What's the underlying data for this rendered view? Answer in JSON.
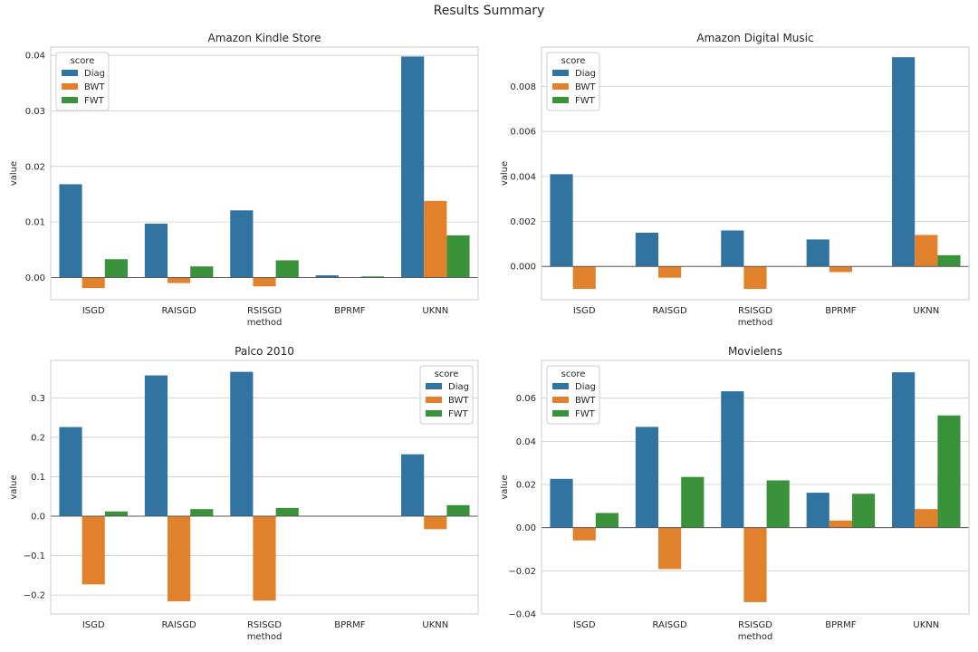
{
  "suptitle": "Results Summary",
  "colors": {
    "Diag": "#3274a1",
    "BWT": "#e1812c",
    "FWT": "#3a923a"
  },
  "chart_data": [
    {
      "type": "bar",
      "title": "Amazon Kindle Store",
      "xlabel": "method",
      "ylabel": "value",
      "categories": [
        "ISGD",
        "RAISGD",
        "RSISGD",
        "BPRMF",
        "UKNN"
      ],
      "ylim": [
        -0.004,
        0.0415
      ],
      "yticks": [
        0.0,
        0.01,
        0.02,
        0.03,
        0.04
      ],
      "ytick_labels": [
        "0.00",
        "0.01",
        "0.02",
        "0.03",
        "0.04"
      ],
      "legend_title": "score",
      "legend_position": "upper left",
      "series": [
        {
          "name": "Diag",
          "values": [
            0.0168,
            0.0097,
            0.0121,
            0.0004,
            0.0398
          ]
        },
        {
          "name": "BWT",
          "values": [
            -0.0019,
            -0.001,
            -0.0016,
            0.0,
            0.0138
          ]
        },
        {
          "name": "FWT",
          "values": [
            0.0033,
            0.002,
            0.0031,
            0.0002,
            0.0076
          ]
        }
      ],
      "grid": true
    },
    {
      "type": "bar",
      "title": "Amazon Digital Music",
      "xlabel": "method",
      "ylabel": "value",
      "categories": [
        "ISGD",
        "RAISGD",
        "RSISGD",
        "BPRMF",
        "UKNN"
      ],
      "ylim": [
        -0.00148,
        0.00975
      ],
      "yticks": [
        0.0,
        0.002,
        0.004,
        0.006,
        0.008
      ],
      "ytick_labels": [
        "0.000",
        "0.002",
        "0.004",
        "0.006",
        "0.008"
      ],
      "legend_title": "score",
      "legend_position": "upper left",
      "series": [
        {
          "name": "Diag",
          "values": [
            0.0041,
            0.0015,
            0.0016,
            0.0012,
            0.0093
          ]
        },
        {
          "name": "BWT",
          "values": [
            -0.001,
            -0.0005,
            -0.001,
            -0.00025,
            0.0014
          ]
        },
        {
          "name": "FWT",
          "values": [
            0.0,
            0.0,
            0.0,
            0.0,
            0.0005
          ]
        }
      ],
      "grid": true
    },
    {
      "type": "bar",
      "title": "Palco 2010",
      "xlabel": "method",
      "ylabel": "value",
      "categories": [
        "ISGD",
        "RAISGD",
        "RSISGD",
        "BPRMF",
        "UKNN"
      ],
      "ylim": [
        -0.248,
        0.395
      ],
      "yticks": [
        -0.2,
        -0.1,
        0.0,
        0.1,
        0.2,
        0.3
      ],
      "ytick_labels": [
        "−0.2",
        "−0.1",
        "0.0",
        "0.1",
        "0.2",
        "0.3"
      ],
      "legend_title": "score",
      "legend_position": "upper right",
      "series": [
        {
          "name": "Diag",
          "values": [
            0.226,
            0.357,
            0.366,
            0.0,
            0.157
          ]
        },
        {
          "name": "BWT",
          "values": [
            -0.173,
            -0.216,
            -0.214,
            0.0,
            -0.033
          ]
        },
        {
          "name": "FWT",
          "values": [
            0.012,
            0.018,
            0.021,
            0.0,
            0.028
          ]
        }
      ],
      "grid": true
    },
    {
      "type": "bar",
      "title": "Movielens",
      "xlabel": "method",
      "ylabel": "value",
      "categories": [
        "ISGD",
        "RAISGD",
        "RSISGD",
        "BPRMF",
        "UKNN"
      ],
      "ylim": [
        -0.04,
        0.0775
      ],
      "yticks": [
        -0.04,
        -0.02,
        0.0,
        0.02,
        0.04,
        0.06
      ],
      "ytick_labels": [
        "−0.04",
        "−0.02",
        "0.00",
        "0.02",
        "0.04",
        "0.06"
      ],
      "legend_title": "score",
      "legend_position": "upper left",
      "series": [
        {
          "name": "Diag",
          "values": [
            0.0226,
            0.0467,
            0.0632,
            0.0162,
            0.072
          ]
        },
        {
          "name": "BWT",
          "values": [
            -0.0059,
            -0.0192,
            -0.0345,
            0.0033,
            0.0086
          ]
        },
        {
          "name": "FWT",
          "values": [
            0.0068,
            0.0235,
            0.0219,
            0.0157,
            0.052
          ]
        }
      ],
      "grid": true
    }
  ]
}
